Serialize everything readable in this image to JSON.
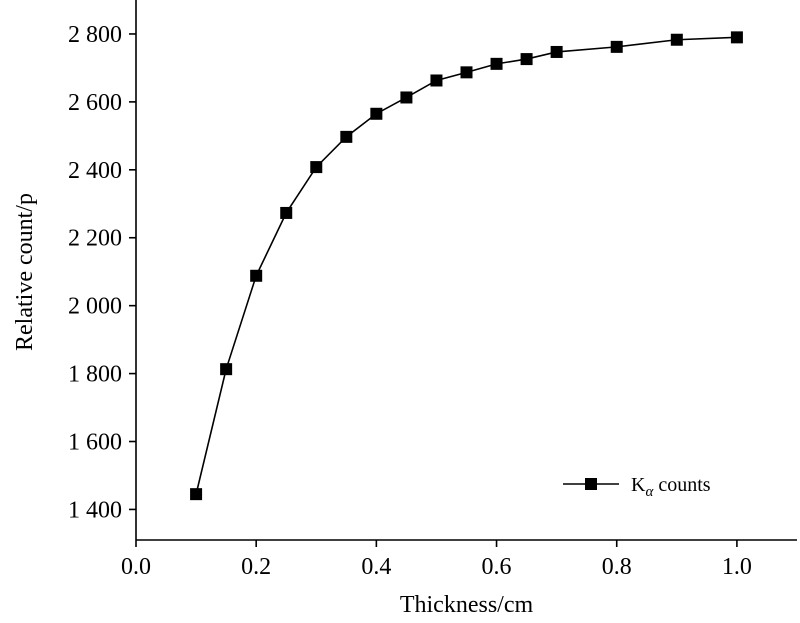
{
  "chart_data": {
    "type": "line",
    "xlabel": "Thickness/cm",
    "ylabel": "Relative count/p",
    "xlim": [
      0.0,
      1.1
    ],
    "ylim": [
      1310,
      2900
    ],
    "x_ticks": [
      0.0,
      0.2,
      0.4,
      0.6,
      0.8,
      1.0
    ],
    "x_tick_labels": [
      "0.0",
      "0.2",
      "0.4",
      "0.6",
      "0.8",
      "1.0"
    ],
    "y_ticks": [
      1400,
      1600,
      1800,
      2000,
      2200,
      2400,
      2600,
      2800
    ],
    "y_tick_labels": [
      "1 400",
      "1 600",
      "1 800",
      "2 000",
      "2 200",
      "2 400",
      "2 600",
      "2 800"
    ],
    "grid": false,
    "legend_position": "bottom-right",
    "series": [
      {
        "name": "Kα counts",
        "legend_main": "K",
        "legend_sub": "α",
        "legend_rest": " counts",
        "color": "#000000",
        "marker": "square",
        "x": [
          0.1,
          0.15,
          0.2,
          0.25,
          0.3,
          0.35,
          0.4,
          0.45,
          0.5,
          0.55,
          0.6,
          0.65,
          0.7,
          0.8,
          0.9,
          1.0
        ],
        "y": [
          1445,
          1813,
          2088,
          2273,
          2408,
          2497,
          2565,
          2613,
          2663,
          2687,
          2712,
          2726,
          2747,
          2762,
          2783,
          2790
        ]
      }
    ]
  }
}
